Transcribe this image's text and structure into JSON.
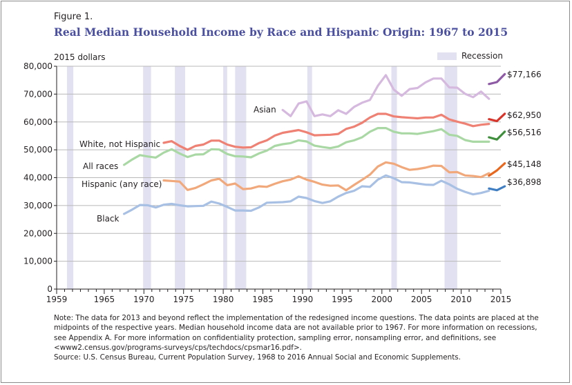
{
  "figure_label": "Figure 1.",
  "footnote": {
    "lines": [
      "Note: The data for 2013 and beyond reflect the implementation of the redesigned income questions. The data points are placed at the",
      "midpoints of the respective years. Median household income data are not available prior to 1967. For more information on recessions,",
      "see Appendix A. For more information on confidentiality protection, sampling error, nonsampling error, and definitions, see",
      "<www2.census.gov/programs-surveys/cps/techdocs/cpsmar16.pdf>.",
      "Source: U.S. Census Bureau, Current Population Survey, 1968 to 2016 Annual Social and Economic Supplements."
    ]
  },
  "chart_data": {
    "type": "line",
    "title": "Real Median Household Income by Race and Hispanic Origin: 1967 to 2015",
    "ylabel": "2015 dollars",
    "xlabel": "",
    "xlim": [
      1959,
      2015
    ],
    "ylim": [
      0,
      80000
    ],
    "x_ticks": [
      1959,
      1965,
      1970,
      1975,
      1980,
      1985,
      1990,
      1995,
      2000,
      2005,
      2010,
      2015
    ],
    "y_ticks": [
      0,
      10000,
      20000,
      30000,
      40000,
      50000,
      60000,
      70000,
      80000
    ],
    "y_tick_labels": [
      "0",
      "10,000",
      "20,000",
      "30,000",
      "40,000",
      "50,000",
      "60,000",
      "70,000",
      "80,000"
    ],
    "grid": "horizontal",
    "legend": {
      "label": "Recession",
      "color": "#e2e1f1",
      "placement": "top-right"
    },
    "recessions": [
      [
        1960.3,
        1961.1
      ],
      [
        1969.9,
        1970.9
      ],
      [
        1973.9,
        1975.2
      ],
      [
        1980.0,
        1980.5
      ],
      [
        1981.5,
        1982.9
      ],
      [
        1990.6,
        1991.2
      ],
      [
        2001.2,
        2001.9
      ],
      [
        2007.9,
        2009.5
      ]
    ],
    "series": [
      {
        "name": "Asian",
        "label": "Asian",
        "color": "#d6b9de",
        "new_color": "#8e5aa6",
        "end_label": "$77,166",
        "x": [
          1987,
          1988,
          1989,
          1990,
          1991,
          1992,
          1993,
          1994,
          1995,
          1996,
          1997,
          1998,
          1999,
          2000,
          2001,
          2002,
          2003,
          2004,
          2005,
          2006,
          2007,
          2008,
          2009,
          2010,
          2011,
          2012,
          2013
        ],
        "values": [
          64300,
          62100,
          66600,
          67400,
          62100,
          62700,
          62100,
          64200,
          62900,
          65400,
          66900,
          67900,
          73000,
          76800,
          71600,
          69400,
          71800,
          72200,
          74200,
          75600,
          75600,
          72400,
          72300,
          70100,
          68900,
          70900,
          68300
        ],
        "new_x": [
          2013,
          2014,
          2015
        ],
        "new_values": [
          73600,
          74300,
          77166
        ]
      },
      {
        "name": "White, not Hispanic",
        "label": "White, not Hispanic",
        "color": "#ee8173",
        "new_color": "#d8342a",
        "end_label": "$62,950",
        "x": [
          1972,
          1973,
          1974,
          1975,
          1976,
          1977,
          1978,
          1979,
          1980,
          1981,
          1982,
          1983,
          1984,
          1985,
          1986,
          1987,
          1988,
          1989,
          1990,
          1991,
          1992,
          1993,
          1994,
          1995,
          1996,
          1997,
          1998,
          1999,
          2000,
          2001,
          2002,
          2003,
          2004,
          2005,
          2006,
          2007,
          2008,
          2009,
          2010,
          2011,
          2012,
          2013
        ],
        "values": [
          52500,
          53100,
          51400,
          50000,
          51400,
          51900,
          53300,
          53300,
          51900,
          51100,
          50800,
          50900,
          52400,
          53400,
          55100,
          56100,
          56600,
          57100,
          56300,
          55200,
          55300,
          55400,
          55700,
          57500,
          58300,
          59700,
          61600,
          62900,
          62900,
          62000,
          61700,
          61500,
          61300,
          61600,
          61600,
          62600,
          60900,
          60100,
          59400,
          58500,
          59000,
          59300
        ],
        "new_x": [
          2013,
          2014,
          2015
        ],
        "new_values": [
          61000,
          60300,
          62950
        ]
      },
      {
        "name": "All races",
        "label": "All races",
        "color": "#a9d8a4",
        "new_color": "#3f8f3d",
        "end_label": "$56,516",
        "x": [
          1967,
          1968,
          1969,
          1970,
          1971,
          1972,
          1973,
          1974,
          1975,
          1976,
          1977,
          1978,
          1979,
          1980,
          1981,
          1982,
          1983,
          1984,
          1985,
          1986,
          1987,
          1988,
          1989,
          1990,
          1991,
          1992,
          1993,
          1994,
          1995,
          1996,
          1997,
          1998,
          1999,
          2000,
          2001,
          2002,
          2003,
          2004,
          2005,
          2006,
          2007,
          2008,
          2009,
          2010,
          2011,
          2012,
          2013
        ],
        "values": [
          44600,
          46500,
          48100,
          47600,
          47200,
          49000,
          50200,
          48700,
          47400,
          48300,
          48400,
          50200,
          50100,
          48500,
          47700,
          47600,
          47300,
          48700,
          49700,
          51400,
          52000,
          52400,
          53400,
          53000,
          51500,
          51000,
          50600,
          51200,
          52700,
          53400,
          54500,
          56500,
          57800,
          57800,
          56500,
          55900,
          55900,
          55700,
          56200,
          56700,
          57400,
          55400,
          55000,
          53500,
          52900,
          52900,
          52900
        ],
        "new_x": [
          2013,
          2014,
          2015
        ],
        "new_values": [
          54500,
          53700,
          56516
        ]
      },
      {
        "name": "Hispanic (any race)",
        "label": "Hispanic (any race)",
        "color": "#f1a87a",
        "new_color": "#e8671d",
        "end_label": "$45,148",
        "x": [
          1972,
          1973,
          1974,
          1975,
          1976,
          1977,
          1978,
          1979,
          1980,
          1981,
          1982,
          1983,
          1984,
          1985,
          1986,
          1987,
          1988,
          1989,
          1990,
          1991,
          1992,
          1993,
          1994,
          1995,
          1996,
          1997,
          1998,
          1999,
          2000,
          2001,
          2002,
          2003,
          2004,
          2005,
          2006,
          2007,
          2008,
          2009,
          2010,
          2011,
          2012,
          2013
        ],
        "values": [
          39000,
          38800,
          38600,
          35600,
          36300,
          37600,
          39000,
          39600,
          37300,
          37900,
          35900,
          36100,
          36900,
          36700,
          37800,
          38700,
          39300,
          40500,
          39300,
          38500,
          37500,
          37100,
          37200,
          35500,
          37400,
          39200,
          41100,
          44000,
          45500,
          45000,
          43800,
          42800,
          43100,
          43600,
          44300,
          44200,
          41900,
          42000,
          40800,
          40600,
          40200,
          41600
        ],
        "new_x": [
          2013,
          2014,
          2015
        ],
        "new_values": [
          40700,
          42600,
          45148
        ]
      },
      {
        "name": "Black",
        "label": "Black",
        "color": "#a7c0e3",
        "new_color": "#3f7ec2",
        "end_label": "$36,898",
        "x": [
          1967,
          1968,
          1969,
          1970,
          1971,
          1972,
          1973,
          1974,
          1975,
          1976,
          1977,
          1978,
          1979,
          1980,
          1981,
          1982,
          1983,
          1984,
          1985,
          1986,
          1987,
          1988,
          1989,
          1990,
          1991,
          1992,
          1993,
          1994,
          1995,
          1996,
          1997,
          1998,
          1999,
          2000,
          2001,
          2002,
          2003,
          2004,
          2005,
          2006,
          2007,
          2008,
          2009,
          2010,
          2011,
          2012,
          2013
        ],
        "values": [
          27000,
          28500,
          30200,
          30100,
          29300,
          30300,
          30600,
          30100,
          29700,
          29800,
          29900,
          31400,
          30700,
          29500,
          28200,
          28200,
          28100,
          29300,
          31000,
          31100,
          31200,
          31500,
          33200,
          32700,
          31600,
          30900,
          31500,
          33200,
          34500,
          35300,
          36900,
          36700,
          39300,
          40800,
          39800,
          38400,
          38300,
          37900,
          37500,
          37400,
          38900,
          37600,
          36000,
          34900,
          34000,
          34500,
          35300
        ],
        "new_x": [
          2013,
          2014,
          2015
        ],
        "new_values": [
          36100,
          35500,
          36898
        ]
      }
    ]
  }
}
